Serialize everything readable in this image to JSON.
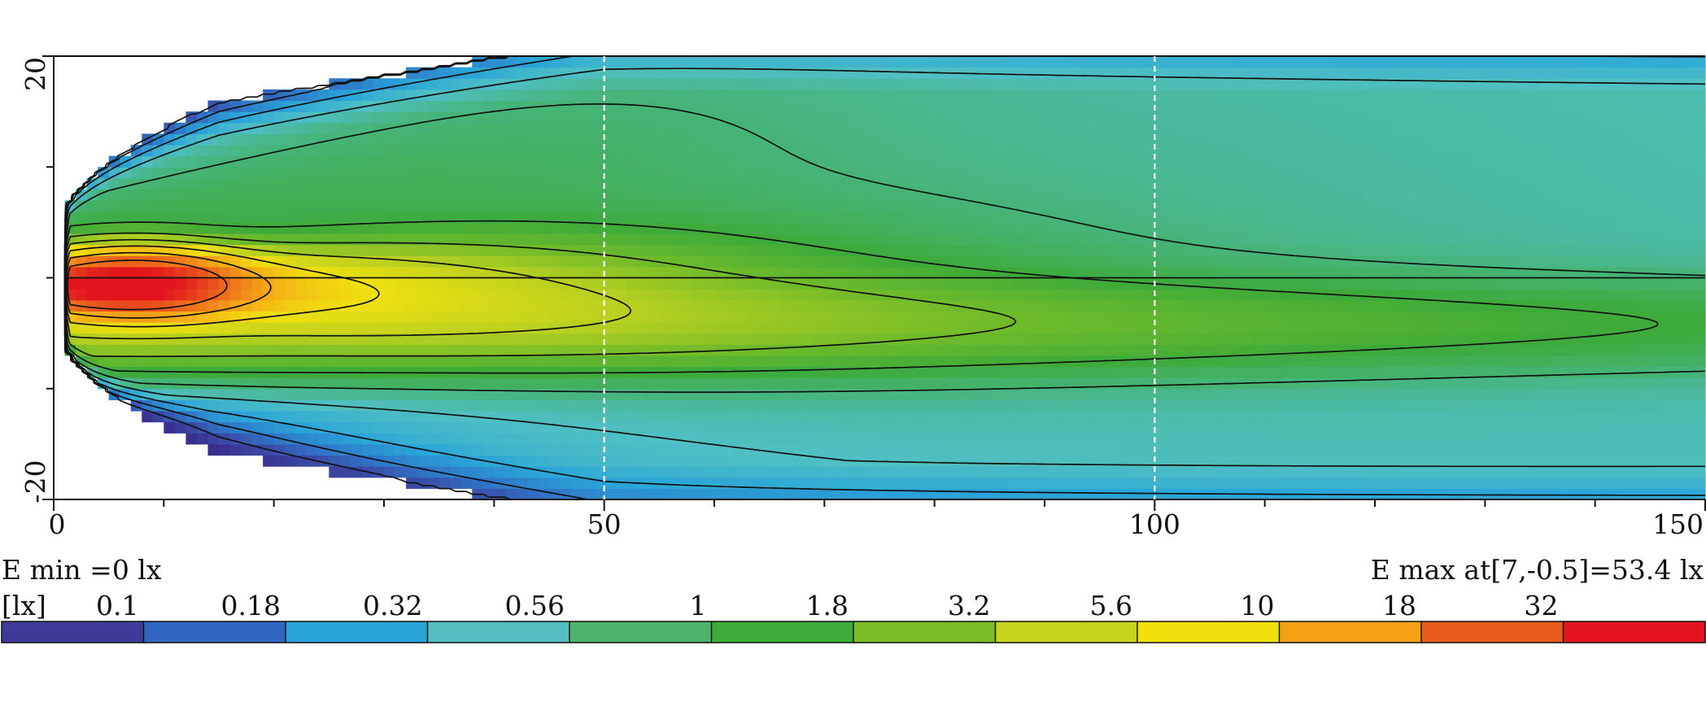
{
  "chart_data": {
    "type": "heatmap",
    "title": "",
    "xlabel": "",
    "ylabel": "",
    "xlim": [
      0,
      150
    ],
    "ylim": [
      -20,
      20
    ],
    "x_ticks": [
      0,
      50,
      100,
      150
    ],
    "y_ticks": [
      20,
      -20
    ],
    "x_minor_step": 10,
    "y_minor_step": 10,
    "dashed_gridlines_x": [
      50,
      100
    ],
    "e_min_label": "E min =0 lx",
    "e_max_label": "E max at[7,-0.5]=53.4 lx",
    "e_max": {
      "x": 7,
      "y": -0.5,
      "value": 53.4
    },
    "colorbar": {
      "unit_label": "[lx]",
      "tick_labels": [
        "0.1",
        "0.18",
        "0.32",
        "0.56",
        "1",
        "1.8",
        "3.2",
        "5.6",
        "10",
        "18",
        "32"
      ],
      "levels": [
        0.1,
        0.18,
        0.32,
        0.56,
        1,
        1.8,
        3.2,
        5.6,
        10,
        18,
        32
      ],
      "colors": [
        "#3f3a98",
        "#3065c2",
        "#2aa3d8",
        "#54bdc0",
        "#4db36b",
        "#3daa3a",
        "#7abd28",
        "#c8d41b",
        "#f1e00d",
        "#f5a115",
        "#ea5a1c",
        "#e3141e"
      ]
    },
    "grid": false,
    "legend": "bottom"
  }
}
